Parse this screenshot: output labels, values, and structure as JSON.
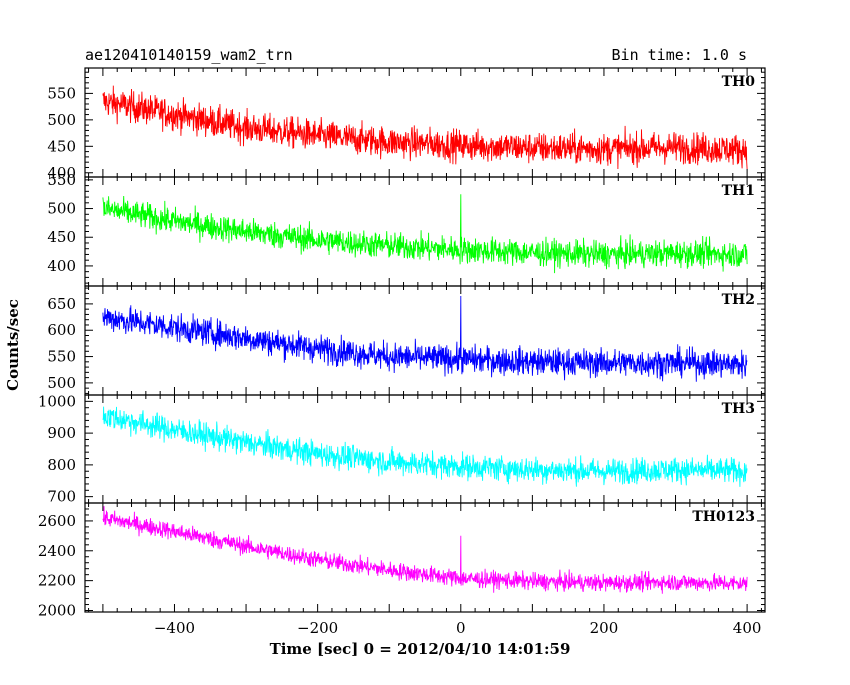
{
  "header": {
    "title": "ae120410140159_wam2_trn",
    "bin_time": "Bin time: 1.0 s"
  },
  "axes": {
    "xlabel": "Time [sec] 0 = 2012/04/10 14:01:59",
    "ylabel": "Counts/sec"
  },
  "chart_data": {
    "type": "line",
    "title": "ae120410140159_wam2_trn",
    "xlabel": "Time [sec] 0 = 2012/04/10 14:01:59",
    "ylabel": "Counts/sec",
    "xlim": [
      -525,
      425
    ],
    "x_ticks": [
      -400,
      -200,
      0,
      200,
      400
    ],
    "x_range_data": [
      -500,
      400
    ],
    "bin_seconds": 1.0,
    "grid": false,
    "panels": [
      {
        "name": "TH0",
        "color": "#ff0000",
        "ylim": [
          392,
          598
        ],
        "y_ticks": [
          400,
          450,
          500,
          550
        ],
        "trend": [
          [
            -500,
            535
          ],
          [
            -400,
            510
          ],
          [
            -300,
            485
          ],
          [
            -200,
            470
          ],
          [
            -100,
            458
          ],
          [
            0,
            452
          ],
          [
            100,
            447
          ],
          [
            200,
            445
          ],
          [
            300,
            448
          ],
          [
            400,
            443
          ]
        ],
        "noise": 28,
        "spikes": [
          [
            0,
            470
          ]
        ]
      },
      {
        "name": "TH1",
        "color": "#00ff00",
        "ylim": [
          365,
          555
        ],
        "y_ticks": [
          400,
          450,
          500,
          550
        ],
        "trend": [
          [
            -500,
            500
          ],
          [
            -400,
            478
          ],
          [
            -300,
            460
          ],
          [
            -200,
            445
          ],
          [
            -100,
            435
          ],
          [
            0,
            428
          ],
          [
            100,
            423
          ],
          [
            200,
            420
          ],
          [
            300,
            422
          ],
          [
            400,
            420
          ]
        ],
        "noise": 22,
        "spikes": [
          [
            0,
            525
          ]
        ]
      },
      {
        "name": "TH2",
        "color": "#0000ff",
        "ylim": [
          477,
          684
        ],
        "y_ticks": [
          500,
          550,
          600,
          650
        ],
        "trend": [
          [
            -500,
            625
          ],
          [
            -400,
            605
          ],
          [
            -300,
            585
          ],
          [
            -200,
            565
          ],
          [
            -100,
            550
          ],
          [
            0,
            545
          ],
          [
            100,
            540
          ],
          [
            200,
            538
          ],
          [
            300,
            538
          ],
          [
            400,
            535
          ]
        ],
        "noise": 25,
        "spikes": [
          [
            0,
            665
          ]
        ]
      },
      {
        "name": "TH3",
        "color": "#00ffff",
        "ylim": [
          680,
          1020
        ],
        "y_ticks": [
          700,
          800,
          900,
          1000
        ],
        "trend": [
          [
            -500,
            955
          ],
          [
            -400,
            910
          ],
          [
            -300,
            870
          ],
          [
            -200,
            835
          ],
          [
            -100,
            810
          ],
          [
            0,
            795
          ],
          [
            100,
            785
          ],
          [
            200,
            780
          ],
          [
            300,
            785
          ],
          [
            400,
            780
          ]
        ],
        "noise": 38,
        "spikes": []
      },
      {
        "name": "TH0123",
        "color": "#ff00ff",
        "ylim": [
          1990,
          2720
        ],
        "y_ticks": [
          2000,
          2200,
          2400,
          2600
        ],
        "trend": [
          [
            -500,
            2620
          ],
          [
            -400,
            2530
          ],
          [
            -300,
            2430
          ],
          [
            -200,
            2340
          ],
          [
            -100,
            2270
          ],
          [
            0,
            2215
          ],
          [
            100,
            2195
          ],
          [
            200,
            2185
          ],
          [
            300,
            2190
          ],
          [
            400,
            2180
          ]
        ],
        "noise": 55,
        "spikes": [
          [
            0,
            2500
          ]
        ]
      }
    ]
  }
}
